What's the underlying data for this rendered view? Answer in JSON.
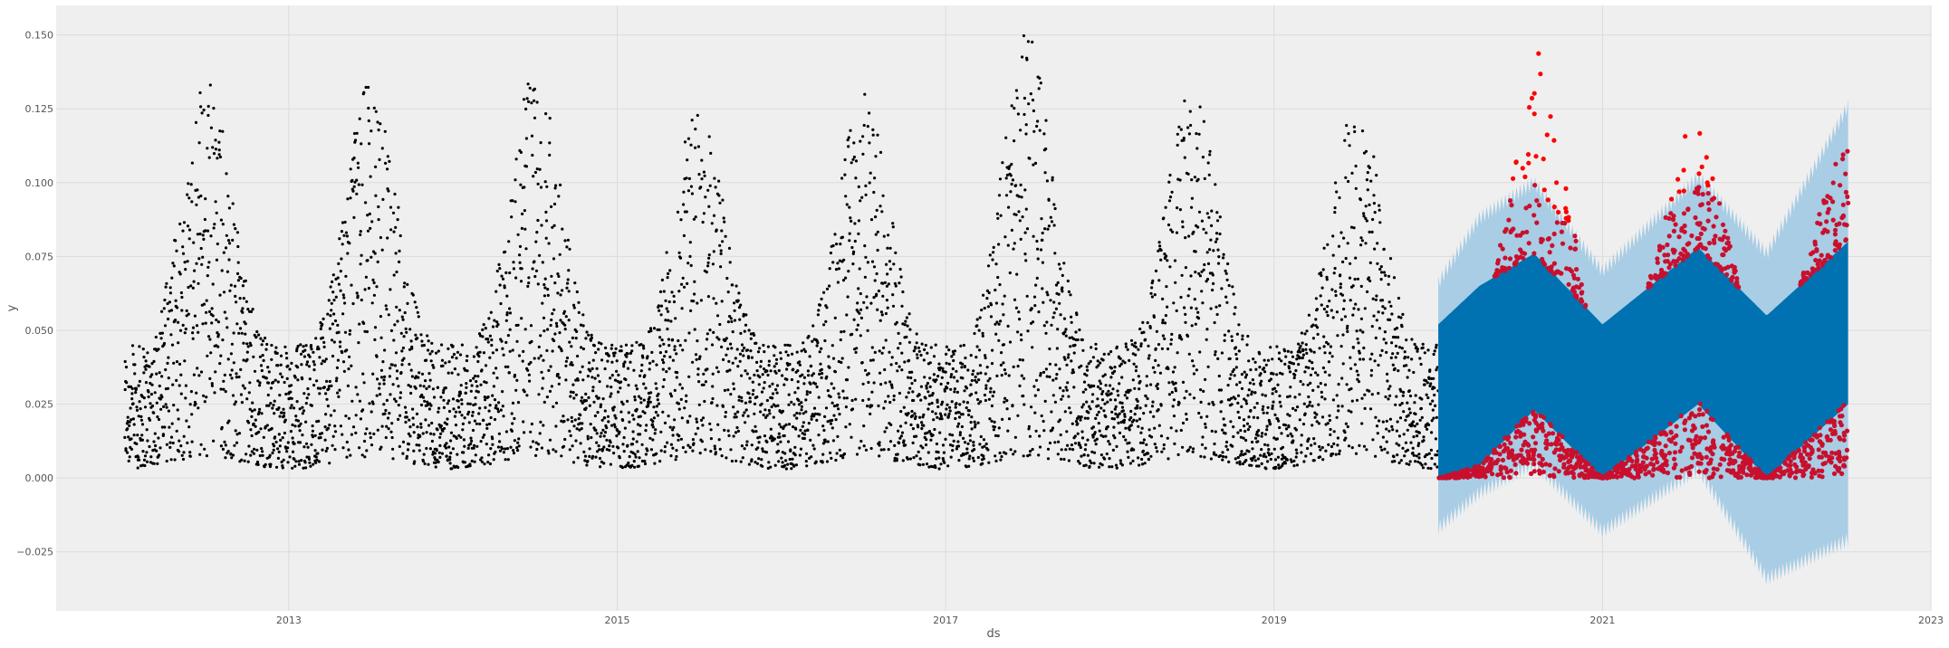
{
  "chart_data": {
    "type": "scatter",
    "title": "",
    "xlabel": "ds",
    "ylabel": "y",
    "xlim": [
      "2011-08-01",
      "2023-01-01"
    ],
    "ylim": [
      -0.045,
      0.16
    ],
    "grid": true,
    "x_ticks": [
      "2013",
      "2015",
      "2017",
      "2019",
      "2021",
      "2023"
    ],
    "y_ticks": [
      "−0.025",
      "0.000",
      "0.025",
      "0.050",
      "0.075",
      "0.100",
      "0.125",
      "0.150"
    ],
    "y_tick_values": [
      -0.025,
      0,
      0.025,
      0.05,
      0.075,
      0.1,
      0.125,
      0.15
    ],
    "colors": {
      "background": "#efefef",
      "grid": "#dcdcdc",
      "observed": "#000000",
      "forecast_band": "#a9cde4",
      "forecast": "#0072b2",
      "actual_in_band": "#c8102e",
      "actual_outside_band": "#ff0000"
    },
    "series": [
      {
        "name": "",
        "kind": "observed-points",
        "x_range": [
          "2012-01-01",
          "2019-12-31"
        ],
        "y_min": 0.0,
        "annual_peak_months": [
          "2012-07",
          "2013-07",
          "2014-07",
          "2015-07",
          "2016-07",
          "2017-07",
          "2018-07",
          "2019-07"
        ],
        "annual_peak_max_y": [
          0.134,
          0.134,
          0.137,
          0.126,
          0.13,
          0.151,
          0.132,
          0.128
        ]
      },
      {
        "name": "",
        "kind": "forecast-band",
        "x_range": [
          "2020-01-01",
          "2022-06-30"
        ],
        "x": [
          "2020-01-01",
          "2020-04-01",
          "2020-08-01",
          "2021-01-01",
          "2021-08-01",
          "2022-01-01",
          "2022-06-30"
        ],
        "upper": [
          0.066,
          0.088,
          0.1,
          0.07,
          0.102,
          0.076,
          0.126
        ],
        "lower": [
          -0.017,
          -0.005,
          0.005,
          -0.018,
          0.003,
          -0.034,
          -0.021
        ]
      },
      {
        "name": "",
        "kind": "forecast",
        "x": [
          "2020-01-01",
          "2020-04-01",
          "2020-08-01",
          "2021-01-01",
          "2021-08-01",
          "2022-01-01",
          "2022-06-30"
        ],
        "upper": [
          0.052,
          0.065,
          0.076,
          0.052,
          0.078,
          0.055,
          0.08
        ],
        "lower": [
          0.0,
          0.004,
          0.023,
          0.0,
          0.025,
          0.0,
          0.025
        ]
      },
      {
        "name": "",
        "kind": "actual-points",
        "x_range": [
          "2020-01-01",
          "2022-06-30"
        ],
        "peak_max_y": [
          0.148,
          0.125,
          0.116
        ]
      }
    ]
  }
}
